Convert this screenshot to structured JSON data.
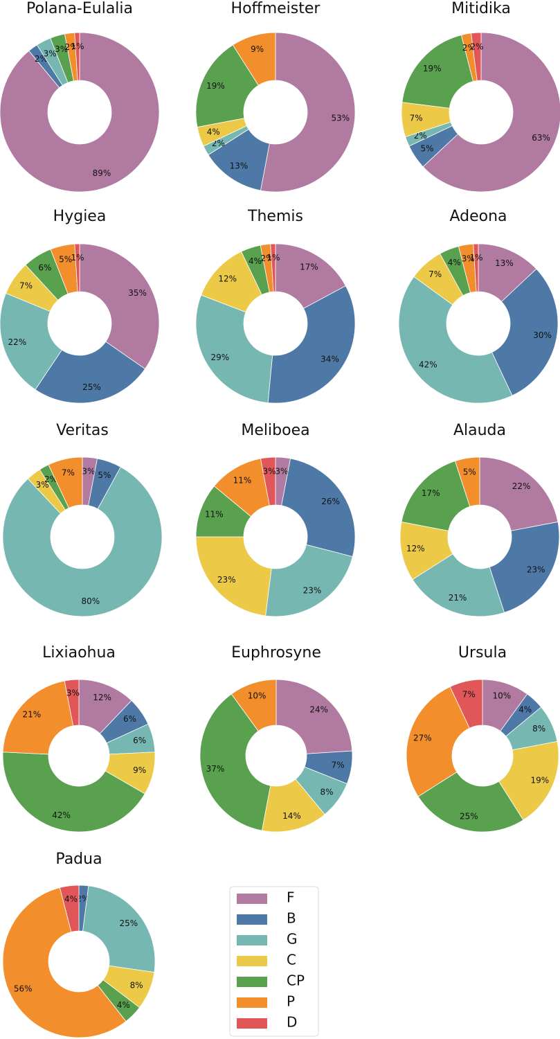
{
  "chart_data": {
    "type": "pie",
    "legend": {
      "placement": "bottom-center",
      "entries": [
        {
          "key": "F",
          "label": "F",
          "color": "#b07aa1"
        },
        {
          "key": "B",
          "label": "B",
          "color": "#4e79a7"
        },
        {
          "key": "G",
          "label": "G",
          "color": "#76b7b2"
        },
        {
          "key": "C",
          "label": "C",
          "color": "#edc948"
        },
        {
          "key": "CP",
          "label": "CP",
          "color": "#59a14f"
        },
        {
          "key": "P",
          "label": "P",
          "color": "#f28e2b"
        },
        {
          "key": "D",
          "label": "D",
          "color": "#e15759"
        }
      ]
    },
    "categories": [
      "F",
      "B",
      "G",
      "C",
      "CP",
      "P",
      "D"
    ],
    "charts": [
      {
        "title": "Polana-Eulalia",
        "values": [
          89,
          2,
          3,
          0,
          3,
          2,
          1
        ],
        "labels": [
          "89%",
          "2%",
          "3%",
          "",
          "3%",
          "2%",
          "1%"
        ]
      },
      {
        "title": "Hoffmeister",
        "values": [
          53,
          13,
          2,
          4,
          19,
          9,
          0
        ],
        "labels": [
          "53%",
          "13%",
          "2%",
          "4%",
          "19%",
          "9%",
          ""
        ]
      },
      {
        "title": "Mitidika",
        "values": [
          63,
          5,
          2,
          7,
          19,
          2,
          2
        ],
        "labels": [
          "63%",
          "5%",
          "2%",
          "7%",
          "19%",
          "2%",
          "2%"
        ]
      },
      {
        "title": "Hygiea",
        "values": [
          35,
          25,
          22,
          7,
          6,
          5,
          1
        ],
        "labels": [
          "35%",
          "25%",
          "22%",
          "7%",
          "6%",
          "5%",
          "1%"
        ]
      },
      {
        "title": "Themis",
        "values": [
          17,
          34,
          29,
          12,
          4,
          2,
          1
        ],
        "labels": [
          "17%",
          "34%",
          "29%",
          "12%",
          "4%",
          "2%",
          "1%"
        ]
      },
      {
        "title": "Adeona",
        "values": [
          13,
          30,
          42,
          7,
          4,
          3,
          1
        ],
        "labels": [
          "13%",
          "30%",
          "42%",
          "7%",
          "4%",
          "3%",
          "1%"
        ]
      },
      {
        "title": "Veritas",
        "values": [
          3,
          5,
          80,
          3,
          2,
          7,
          0
        ],
        "labels": [
          "3%",
          "5%",
          "80%",
          "3%",
          "2%",
          "7%",
          ""
        ]
      },
      {
        "title": "Meliboea",
        "values": [
          3,
          26,
          23,
          23,
          11,
          11,
          3
        ],
        "labels": [
          "3%",
          "26%",
          "23%",
          "23%",
          "11%",
          "11%",
          "3%"
        ]
      },
      {
        "title": "Alauda",
        "values": [
          22,
          23,
          21,
          12,
          17,
          5,
          0
        ],
        "labels": [
          "22%",
          "23%",
          "21%",
          "12%",
          "17%",
          "5%",
          ""
        ]
      },
      {
        "title": "Lixiaohua",
        "values": [
          12,
          6,
          6,
          9,
          42,
          21,
          3
        ],
        "labels": [
          "12%",
          "6%",
          "6%",
          "9%",
          "42%",
          "21%",
          "3%"
        ]
      },
      {
        "title": "Euphrosyne",
        "values": [
          24,
          7,
          8,
          14,
          37,
          10,
          0
        ],
        "labels": [
          "24%",
          "7%",
          "8%",
          "14%",
          "37%",
          "10%",
          ""
        ]
      },
      {
        "title": "Ursula",
        "values": [
          10,
          4,
          8,
          19,
          25,
          27,
          7
        ],
        "labels": [
          "10%",
          "4%",
          "8%",
          "19%",
          "25%",
          "27%",
          "7%"
        ]
      },
      {
        "title": "Padua",
        "values": [
          0,
          2,
          25,
          8,
          4,
          56,
          4
        ],
        "labels": [
          "",
          "2%",
          "25%",
          "8%",
          "4%",
          "56%",
          "4%"
        ]
      }
    ]
  }
}
